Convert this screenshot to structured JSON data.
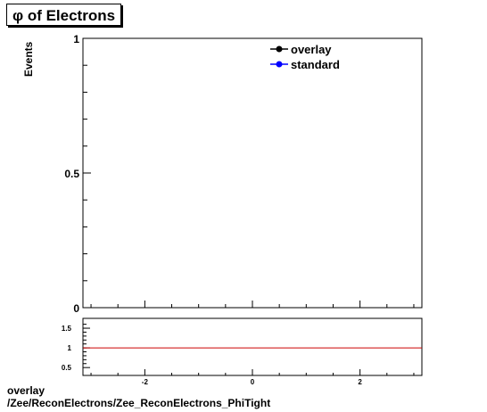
{
  "chart_data": [
    {
      "type": "line",
      "title": "φ of Electrons",
      "xlabel": "",
      "ylabel": "Events",
      "xlim": [
        -3.15,
        3.15
      ],
      "ylim": [
        0,
        1
      ],
      "y_tick_labels": [
        "0",
        "0.5",
        "1"
      ],
      "x_tick_labels": [],
      "legend_position": "top-right",
      "series": [
        {
          "name": "overlay",
          "color": "#000000",
          "marker": "circle",
          "x": [],
          "y": []
        },
        {
          "name": "standard",
          "color": "#0000ff",
          "marker": "circle",
          "x": [],
          "y": []
        }
      ],
      "grid": false
    },
    {
      "type": "line",
      "title": "",
      "xlabel": "",
      "ylabel": "",
      "xlim": [
        -3.15,
        3.15
      ],
      "ylim": [
        0.3,
        1.75
      ],
      "y_tick_labels": [
        "0.5",
        "1",
        "1.5"
      ],
      "x_tick_labels": [
        "-2",
        "0",
        "2"
      ],
      "series": [
        {
          "color": "#cc0000",
          "x": [
            -3.15,
            3.15
          ],
          "y": [
            1,
            1
          ]
        }
      ],
      "grid": false
    }
  ],
  "footer": {
    "line1": "overlay",
    "line2": "/Zee/ReconElectrons/Zee_ReconElectrons_PhiTight"
  }
}
